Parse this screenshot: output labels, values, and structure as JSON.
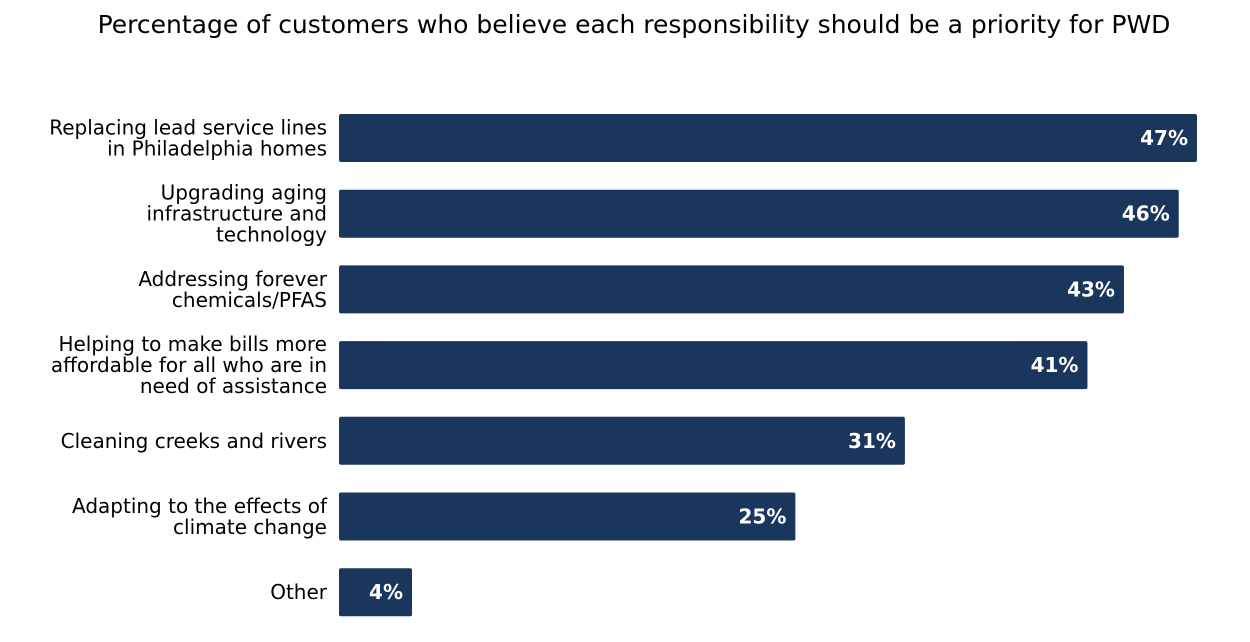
{
  "chart_data": {
    "type": "bar",
    "orientation": "horizontal",
    "title": "Percentage of customers who believe each responsibility should be a priority for PWD",
    "categories": [
      [
        "Replacing lead service lines",
        "in Philadelphia homes"
      ],
      [
        "Upgrading aging",
        "infrastructure and",
        "technology"
      ],
      [
        "Addressing forever",
        "chemicals/PFAS"
      ],
      [
        "Helping to make bills more",
        "affordable for all who are in",
        "need of assistance"
      ],
      [
        "Cleaning creeks and rivers"
      ],
      [
        "Adapting to the effects of",
        "climate change"
      ],
      [
        "Other"
      ]
    ],
    "values": [
      47,
      46,
      43,
      41,
      31,
      25,
      4
    ],
    "value_labels": [
      "47%",
      "46%",
      "43%",
      "41%",
      "31%",
      "25%",
      "4%"
    ],
    "unit": "%",
    "xlim": [
      0,
      47
    ],
    "grid": false,
    "legend": "none",
    "bar_color": "#1b365d",
    "value_label_color": "#ffffff"
  }
}
